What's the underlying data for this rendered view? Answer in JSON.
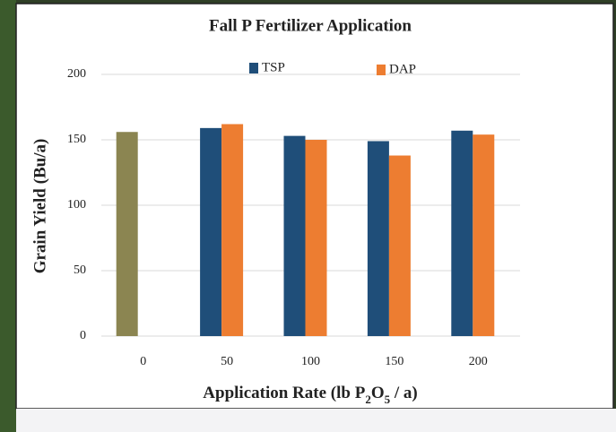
{
  "chart_data": {
    "type": "bar",
    "title": "Fall P Fertilizer Application",
    "y_label": "Grain Yield (Bu/a)",
    "x_label": [
      {
        "text": "Application  Rate (lb P"
      },
      {
        "text": "2",
        "sub": true
      },
      {
        "text": "O"
      },
      {
        "text": "5",
        "sub": true
      },
      {
        "text": " / a)"
      }
    ],
    "categories": [
      "0",
      "50",
      "100",
      "150",
      "200"
    ],
    "series": [
      {
        "name": "TSP",
        "color": "#1f4e79",
        "colors": [
          "#8b8551",
          "#1f4e79",
          "#1f4e79",
          "#1f4e79",
          "#1f4e79"
        ],
        "values": [
          156,
          159,
          153,
          149,
          157
        ]
      },
      {
        "name": "DAP",
        "color": "#ed7d31",
        "values": [
          null,
          162,
          150,
          138,
          154
        ]
      }
    ],
    "ylim": [
      0,
      200
    ],
    "yticks": [
      0,
      50,
      100,
      150,
      200
    ],
    "grid": true,
    "legend": "top"
  }
}
